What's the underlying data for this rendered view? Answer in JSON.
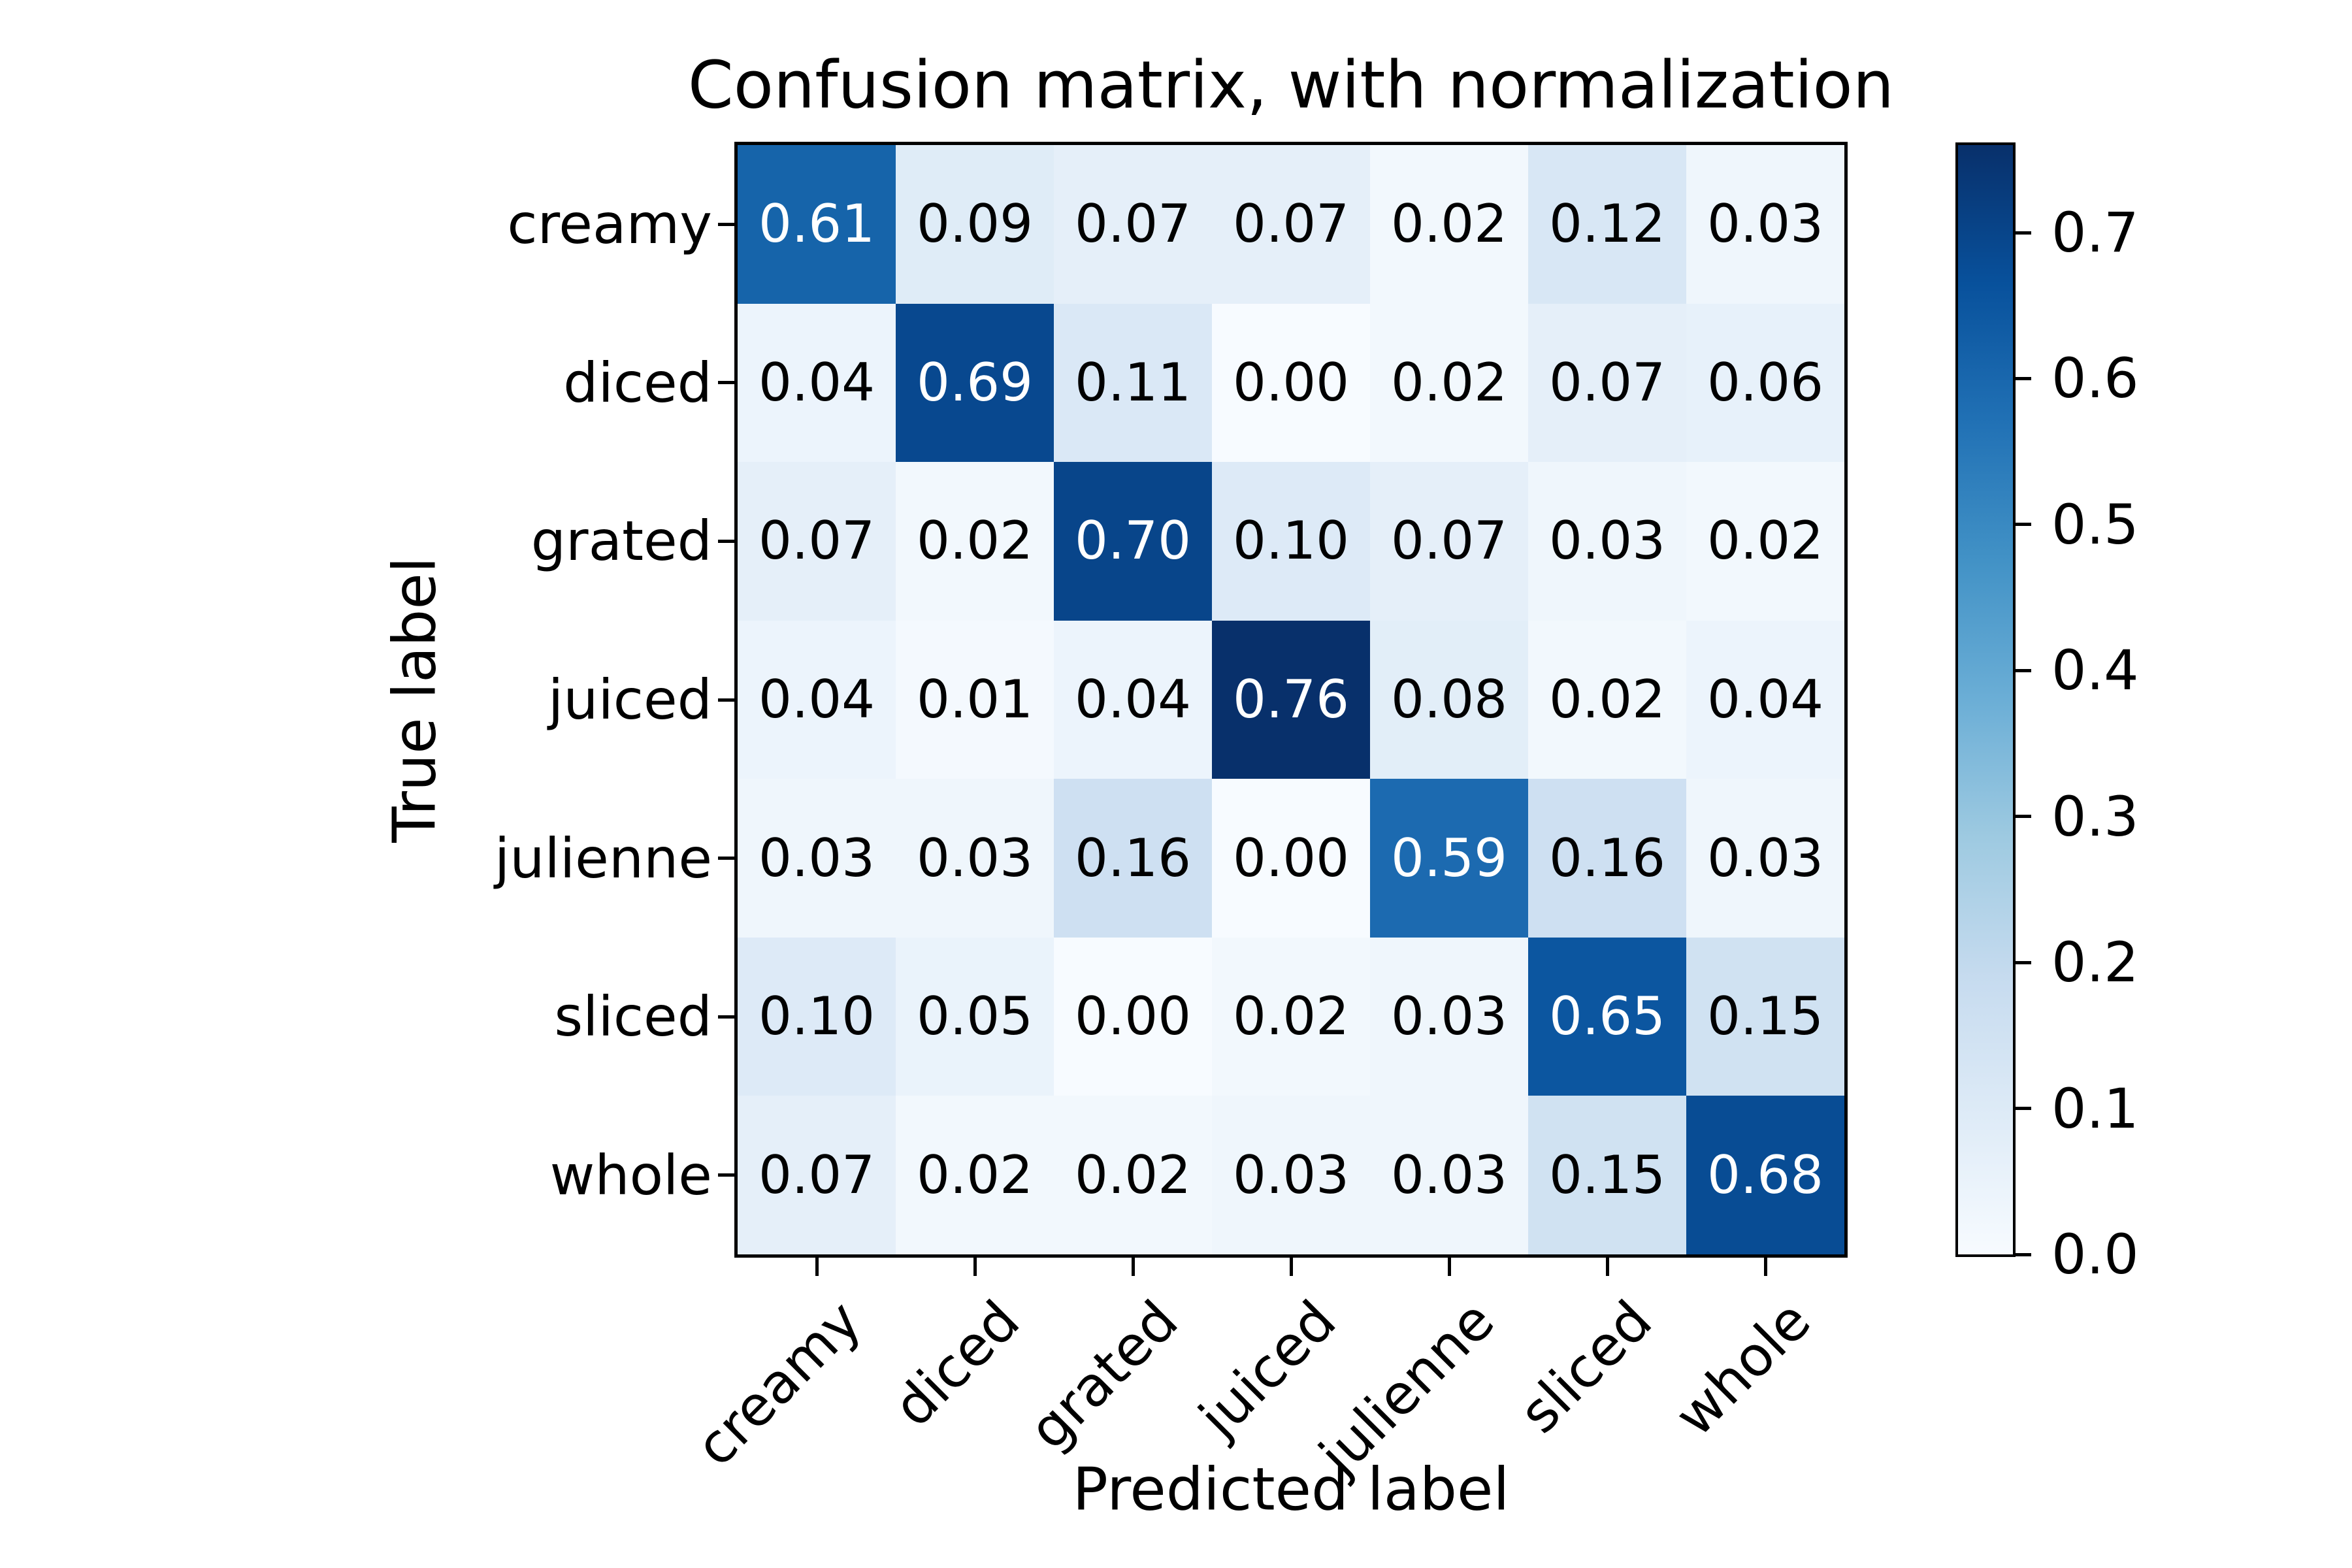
{
  "figure": {
    "title": "Confusion matrix, with normalization",
    "xlabel": "Predicted label",
    "ylabel": "True label"
  },
  "chart_data": {
    "type": "heatmap",
    "title": "Confusion matrix, with normalization",
    "xlabel": "Predicted label",
    "ylabel": "True label",
    "categories": [
      "creamy",
      "diced",
      "grated",
      "juiced",
      "julienne",
      "sliced",
      "whole"
    ],
    "rows": [
      [
        0.61,
        0.09,
        0.07,
        0.07,
        0.02,
        0.12,
        0.03
      ],
      [
        0.04,
        0.69,
        0.11,
        0.0,
        0.02,
        0.07,
        0.06
      ],
      [
        0.07,
        0.02,
        0.7,
        0.1,
        0.07,
        0.03,
        0.02
      ],
      [
        0.04,
        0.01,
        0.04,
        0.76,
        0.08,
        0.02,
        0.04
      ],
      [
        0.03,
        0.03,
        0.16,
        0.0,
        0.59,
        0.16,
        0.03
      ],
      [
        0.1,
        0.05,
        0.0,
        0.02,
        0.03,
        0.65,
        0.15
      ],
      [
        0.07,
        0.02,
        0.02,
        0.03,
        0.03,
        0.15,
        0.68
      ]
    ],
    "value_decimals": 2,
    "vmin": 0.0,
    "vmax": 0.76,
    "colormap": "Blues",
    "legend_position": "right-colorbar",
    "grid": false,
    "colorbar_ticks": [
      "0.0",
      "0.1",
      "0.2",
      "0.3",
      "0.4",
      "0.5",
      "0.6",
      "0.7"
    ]
  },
  "colors": {
    "blues_anchors": [
      "#f7fbff",
      "#deebf7",
      "#c6dbef",
      "#9ecae1",
      "#6baed6",
      "#4292c6",
      "#2171b5",
      "#08519c",
      "#08306b"
    ],
    "text_on_dark": "#ffffff",
    "text_on_light": "#000000",
    "frame": "#000000",
    "background": "#ffffff"
  }
}
